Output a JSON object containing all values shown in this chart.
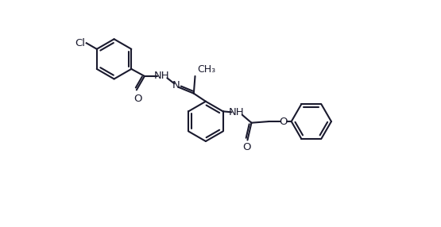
{
  "bg_color": "#ffffff",
  "line_color": "#1a1a2e",
  "line_width": 1.5,
  "font_size": 9.5,
  "fig_width": 5.55,
  "fig_height": 2.86,
  "dpi": 100,
  "xlim": [
    0,
    12
  ],
  "ylim": [
    -3.5,
    5.0
  ]
}
